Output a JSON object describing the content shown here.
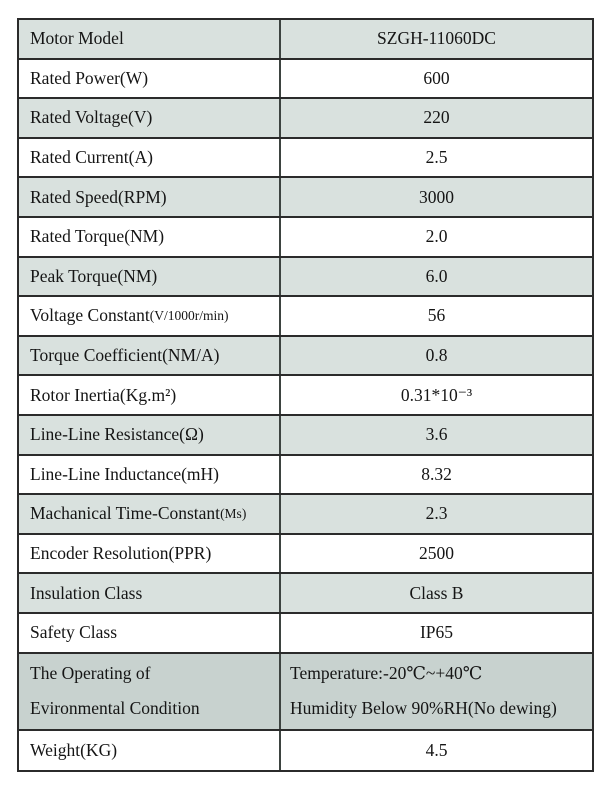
{
  "page": {
    "background_color": "#ffffff",
    "title": "Motor Specification Table"
  },
  "table": {
    "colors": {
      "shaded_row": "#d9e1de",
      "env_row": "#c8d2cf",
      "white_row": "#ffffff",
      "border": "#2b2b2b",
      "text": "#151515"
    },
    "rows": [
      {
        "label": "Motor Model",
        "value": "SZGH-11060DC",
        "shaded": true
      },
      {
        "label": "Rated Power(W)",
        "value": "600",
        "shaded": false
      },
      {
        "label": "Rated Voltage(V)",
        "value": "220",
        "shaded": true
      },
      {
        "label": "Rated Current(A)",
        "value": "2.5",
        "shaded": false
      },
      {
        "label": "Rated Speed(RPM)",
        "value": "3000",
        "shaded": true
      },
      {
        "label": "Rated Torque(NM)",
        "value": "2.0",
        "shaded": false
      },
      {
        "label": "Peak Torque(NM)",
        "value": "6.0",
        "shaded": true
      },
      {
        "label": "Voltage Constant",
        "label_small": "(V/1000r/min)",
        "value": "56",
        "shaded": false
      },
      {
        "label": "Torque Coefficient(NM/A)",
        "value": "0.8",
        "shaded": true
      },
      {
        "label": "Rotor Inertia(Kg.m²)",
        "value": "0.31*10⁻³",
        "shaded": false
      },
      {
        "label": "Line-Line Resistance(Ω)",
        "value": "3.6",
        "shaded": true
      },
      {
        "label": "Line-Line Inductance(mH)",
        "value": "8.32",
        "shaded": false
      },
      {
        "label": "Machanical Time-Constant",
        "label_small": "(Ms)",
        "value": "2.3",
        "shaded": true
      },
      {
        "label": "Encoder Resolution(PPR)",
        "value": "2500",
        "shaded": false
      },
      {
        "label": "Insulation Class",
        "value": "Class B",
        "shaded": true
      },
      {
        "label": "Safety Class",
        "value": "IP65",
        "shaded": false
      },
      {
        "label_lines": [
          "The Operating of",
          "Evironmental Condition"
        ],
        "value_lines": [
          "Temperature:-20℃~+40℃",
          "Humidity Below 90%RH(No dewing)"
        ],
        "shaded": true,
        "dark": true,
        "tall": true
      },
      {
        "label": "Weight(KG)",
        "value": "4.5",
        "shaded": false
      }
    ]
  }
}
